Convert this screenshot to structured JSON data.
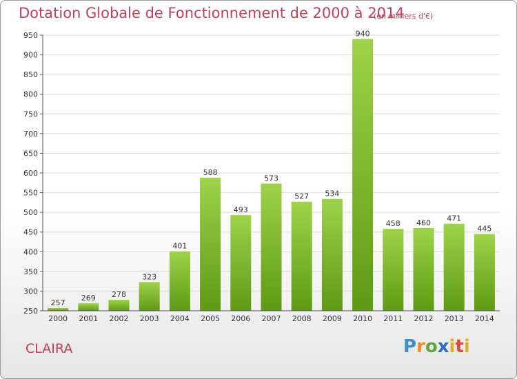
{
  "title": "Dotation Globale de Fonctionnement de 2000 à 2014",
  "subtitle": "(en milliers d'€)",
  "city": "CLAIRA",
  "logo": {
    "text": "Proxiti"
  },
  "colors": {
    "bar_top": "#9fd24a",
    "bar_bottom": "#5e9a14",
    "title": "#c0405a",
    "grid": "#d9d9d9"
  },
  "chart_data": {
    "type": "bar",
    "categories": [
      "2000",
      "2001",
      "2002",
      "2003",
      "2004",
      "2005",
      "2006",
      "2007",
      "2008",
      "2009",
      "2010",
      "2011",
      "2012",
      "2013",
      "2014"
    ],
    "values": [
      257,
      269,
      278,
      323,
      401,
      588,
      493,
      573,
      527,
      534,
      940,
      458,
      460,
      471,
      445
    ],
    "ylim": [
      250,
      950
    ],
    "yticks": [
      250,
      300,
      350,
      400,
      450,
      500,
      550,
      600,
      650,
      700,
      750,
      800,
      850,
      900,
      950
    ],
    "grid": true,
    "xlabel": "",
    "ylabel": ""
  }
}
